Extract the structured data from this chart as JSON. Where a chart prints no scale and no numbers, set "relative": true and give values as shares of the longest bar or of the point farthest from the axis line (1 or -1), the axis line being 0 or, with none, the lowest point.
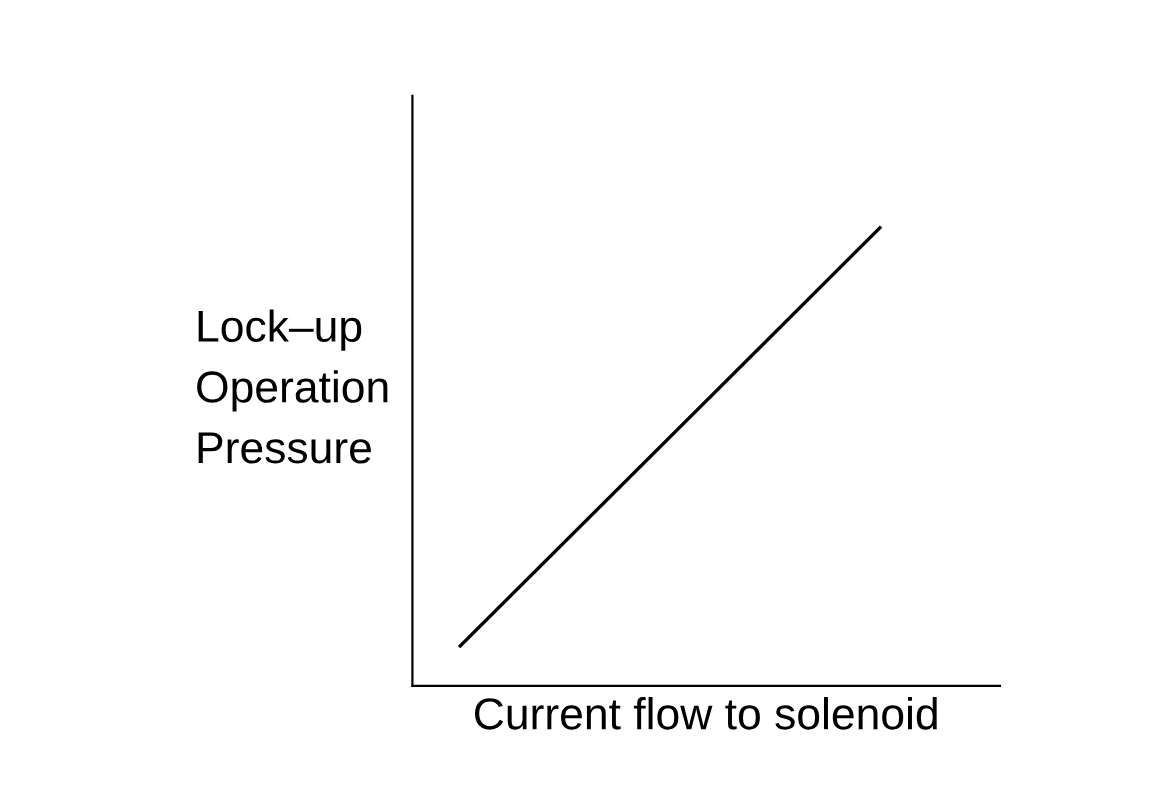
{
  "chart_data": {
    "type": "line",
    "relative": true,
    "xlabel": "Current flow to solenoid",
    "ylabel": "Lock–up\nOperation\nPressure",
    "categories": [
      null,
      null
    ],
    "series": [
      {
        "color": "#000000",
        "values": [
          0.087,
          1
        ]
      }
    ],
    "marker": "none",
    "line_style": "solid"
  }
}
